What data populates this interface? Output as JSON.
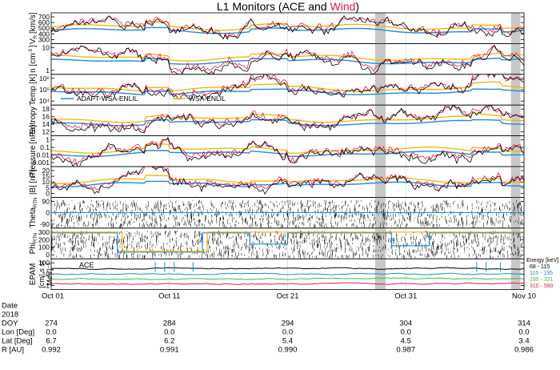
{
  "title": {
    "prefix": "L1 Monitors (ACE and ",
    "highlight": "Wind",
    "suffix": ")"
  },
  "colors": {
    "ace": "#000000",
    "wind": "#e8174f",
    "adapt": "#1a8fd0",
    "wsa": "#f4b400",
    "shade": "#c8c8c8",
    "band": "#bfdff2",
    "grid": "#cfcfcf"
  },
  "chart_data": [
    {
      "type": "line",
      "ylabel": "V",
      "ysub": "R",
      "yunit": "[km/s]",
      "ylim": [
        300,
        700
      ],
      "yticks": [
        "700",
        "600",
        "500",
        "400",
        "300"
      ],
      "legend": false
    },
    {
      "type": "line",
      "ylabel": "n [cm",
      "ysup": "-3",
      "yunit": "]",
      "yscale": "log",
      "ylim": [
        0.3,
        100
      ],
      "yticks": [
        "10",
        "1"
      ],
      "legend": false
    },
    {
      "type": "line",
      "ylabel": "Temp [K]",
      "yscale": "log",
      "ylim": [
        1000,
        2000000
      ],
      "yticks": [
        "10⁶",
        "10⁵",
        "10⁴"
      ],
      "legend": true,
      "legend_items": [
        {
          "name": "ADAPT-WSA-ENLIL",
          "color": "#1a8fd0"
        },
        {
          "name": "WSA-ENLIL",
          "color": "#f4b400"
        }
      ]
    },
    {
      "type": "line",
      "ylabel": "Entropy",
      "ylim": [
        11,
        19
      ],
      "yticks": [
        "18",
        "16",
        "14",
        "12"
      ],
      "legend": false
    },
    {
      "type": "line",
      "ylabel": "Pressure",
      "yunit": "[nPa]",
      "yscale": "log",
      "ylim": [
        0.001,
        3
      ],
      "yticks": [
        "1",
        "0.1",
        "0.01",
        "0.001"
      ],
      "legend": false
    },
    {
      "type": "line",
      "ylabel": "|B| [nT]",
      "ylim": [
        0,
        20
      ],
      "yticks": [
        "20",
        "15",
        "10",
        "5",
        "0"
      ],
      "legend": false
    },
    {
      "type": "scatter",
      "ylabel": "Theta",
      "ysub": "RTN",
      "ylim": [
        -100,
        100
      ],
      "yticks": [
        "90",
        "0",
        "-90"
      ],
      "legend": false
    },
    {
      "type": "scatter",
      "ylabel": "Phi",
      "ysub": "RTN",
      "ylim": [
        0,
        360
      ],
      "yticks": [
        "300",
        "200",
        "100",
        "0"
      ],
      "legend": false
    },
    {
      "type": "line",
      "ylabel": "EPAM",
      "yunit2": "[cm² s sr",
      "yunit3": "MeV]⁻¹",
      "yscale": "log",
      "ylim": [
        1,
        1000
      ],
      "yticks": [
        "100",
        "10",
        "1"
      ],
      "legend": false,
      "annotation": "ACE",
      "energy_title": "Energy [keV]",
      "energy_bands": [
        {
          "label": "68 - 115",
          "color": "#000000",
          "level": 40
        },
        {
          "label": "115 - 195",
          "color": "#1a8fd0",
          "level": 22
        },
        {
          "label": "195 - 321",
          "color": "#39c439",
          "level": 11
        },
        {
          "label": "310 - 580",
          "color": "#e8174f",
          "level": 5
        }
      ]
    }
  ],
  "xaxis": {
    "ticks": [
      "Oct 01",
      "Oct 11",
      "Oct 21",
      "Oct 31",
      "Nov 10"
    ],
    "range_days": 40
  },
  "shaded_regions_days": [
    [
      27.4,
      28.3
    ],
    [
      38.9,
      39.7
    ]
  ],
  "footer": {
    "rows": [
      {
        "label": "Date",
        "values": [
          "",
          "",
          "",
          "",
          ""
        ]
      },
      {
        "label": "2018",
        "values": [
          "",
          "",
          "",
          "",
          ""
        ]
      },
      {
        "label": "DOY",
        "values": [
          "274",
          "284",
          "294",
          "304",
          "314"
        ]
      },
      {
        "label": "Lon [Deg]",
        "values": [
          "0.0",
          "0.0",
          "0.0",
          "0.0",
          "0.0"
        ]
      },
      {
        "label": "Lat [Deg]",
        "values": [
          "6.7",
          "6.2",
          "5.4",
          "4.5",
          "3.4"
        ]
      },
      {
        "label": "R [AU]",
        "values": [
          "0.992",
          "0.991",
          "0.990",
          "0.987",
          "0.986"
        ]
      }
    ]
  }
}
